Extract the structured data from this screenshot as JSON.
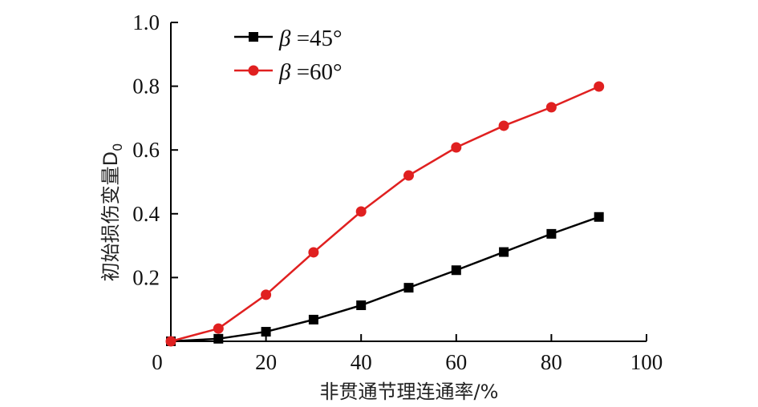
{
  "chart_data": {
    "type": "line",
    "title": "",
    "xlabel": "非贯通节理连通率/%",
    "ylabel": "初始损伤变量D",
    "ylabel_subscript": "0",
    "xlim": [
      0,
      100
    ],
    "ylim": [
      0,
      1.0
    ],
    "xticks": [
      0,
      20,
      40,
      60,
      80,
      100
    ],
    "xtick_labels": [
      "0",
      "20",
      "40",
      "60",
      "80",
      "100"
    ],
    "yticks": [
      0.2,
      0.4,
      0.6,
      0.8,
      1.0
    ],
    "ytick_labels": [
      "0.2",
      "0.4",
      "0.6",
      "0.8",
      "1.0"
    ],
    "grid": false,
    "legend_position": "upper left",
    "x": [
      0,
      10,
      20,
      30,
      40,
      50,
      60,
      70,
      80,
      90
    ],
    "series": [
      {
        "name": "β=45°",
        "legend_symbol": "β",
        "legend_value": "=45°",
        "color": "#000000",
        "marker": "square",
        "values": [
          0.0,
          0.008,
          0.03,
          0.068,
          0.113,
          0.168,
          0.223,
          0.28,
          0.337,
          0.39
        ]
      },
      {
        "name": "β=60°",
        "legend_symbol": "β",
        "legend_value": "=60°",
        "color": "#e02020",
        "marker": "circle",
        "values": [
          0.0,
          0.04,
          0.146,
          0.279,
          0.407,
          0.52,
          0.608,
          0.676,
          0.734,
          0.799
        ]
      }
    ]
  }
}
